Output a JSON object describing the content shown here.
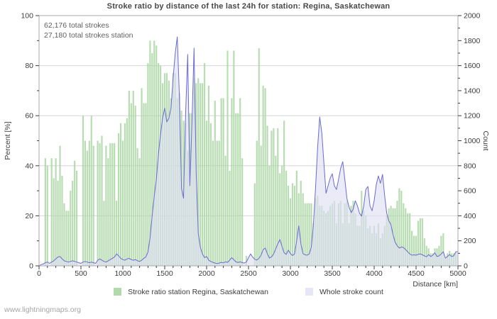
{
  "title": "Stroke ratio by distance of the last 24h for station: Regina, Saskatchewan",
  "annotations": {
    "line1": "62,176 total strokes",
    "line2": "27,180 total strokes station"
  },
  "axes": {
    "x": {
      "label": "Distance  [km]",
      "range": [
        0,
        5000
      ],
      "ticks": [
        0,
        500,
        1000,
        1500,
        2000,
        2500,
        3000,
        3500,
        4000,
        4500,
        5000
      ],
      "minor_step": 100
    },
    "left": {
      "label": "Percent  [%]",
      "range": [
        0,
        100
      ],
      "ticks": [
        0,
        20,
        40,
        60,
        80,
        100
      ],
      "minor_step": 10
    },
    "right": {
      "label": "Count",
      "range": [
        0,
        2000
      ],
      "ticks": [
        0,
        200,
        400,
        600,
        800,
        1000,
        1200,
        1400,
        1600,
        1800,
        2000
      ],
      "minor_step": 100
    }
  },
  "legend": [
    {
      "label": "Stroke ratio station Regina, Saskatchewan",
      "swatch": "#b1d9ab"
    },
    {
      "label": "Whole stroke count",
      "swatch": "#e6e6f7"
    }
  ],
  "footer": "www.lightningmaps.org",
  "colors": {
    "bar": "#a7d4a0",
    "line": "#6b6bd1",
    "area": "#dfdff4",
    "grid": "#d6d6d6",
    "border": "#a9a9a9",
    "tick": "#3c3c3c"
  },
  "chart_data": {
    "type": "bar",
    "subtype": "bars (left axis, percent) + area-line (right axis, count)",
    "title": "Stroke ratio by distance of the last 24h for station: Regina, Saskatchewan",
    "xlabel": "Distance  [km]",
    "ylabel_left": "Percent  [%]",
    "ylabel_right": "Count",
    "xlim": [
      0,
      5000
    ],
    "ylim_left": [
      0,
      100
    ],
    "ylim_right": [
      0,
      2000
    ],
    "grid": "horizontal-only",
    "legend_position": "bottom-center",
    "x_start_km": 0,
    "x_step_km": 25,
    "series": [
      {
        "name": "Stroke ratio station Regina, Saskatchewan",
        "type": "bar",
        "axis": "left",
        "unit": "%",
        "values": [
          0,
          0,
          0,
          43,
          40,
          0,
          43,
          35,
          43,
          34,
          48,
          36,
          25,
          22,
          22,
          30,
          34,
          42,
          38,
          0,
          0,
          60,
          50,
          46,
          50,
          60,
          48,
          0,
          50,
          49,
          52,
          26,
          48,
          43,
          49,
          49,
          49,
          26,
          53,
          57,
          50,
          57,
          59,
          70,
          65,
          70,
          64,
          47,
          43,
          71,
          65,
          65,
          81,
          90,
          85,
          90,
          88,
          81,
          80,
          73,
          77,
          77,
          74,
          67,
          77,
          77,
          67,
          69,
          62,
          58,
          57,
          46,
          61,
          61,
          75,
          73,
          75,
          73,
          73,
          81,
          58,
          72,
          57,
          50,
          66,
          50,
          50,
          67,
          67,
          44,
          86,
          38,
          67,
          86,
          61,
          61,
          67,
          43,
          0,
          4,
          0,
          0,
          0,
          33,
          50,
          87,
          48,
          72,
          71,
          56,
          40,
          54,
          55,
          44,
          55,
          37,
          40,
          58,
          38,
          32,
          27,
          33,
          32,
          38,
          29,
          34,
          29,
          25,
          25,
          25,
          25,
          17,
          27,
          28,
          24,
          24,
          22,
          21,
          22,
          24,
          25,
          26,
          17,
          25,
          26,
          17,
          25,
          26,
          17,
          24,
          26,
          21,
          16,
          16,
          30,
          22,
          20,
          15,
          16,
          13,
          16,
          13,
          17,
          11,
          13,
          16,
          20,
          23,
          24,
          23,
          23,
          26,
          31,
          30,
          25,
          23,
          21,
          21,
          14,
          12,
          12,
          18,
          19,
          19,
          11,
          8,
          7,
          5,
          5,
          7,
          7,
          8,
          12,
          13,
          3,
          5,
          6,
          5,
          5,
          5
        ]
      },
      {
        "name": "Whole stroke count",
        "type": "area-line",
        "axis": "right",
        "unit": "strokes",
        "values": [
          0,
          10,
          15,
          25,
          30,
          20,
          30,
          40,
          55,
          70,
          75,
          55,
          40,
          35,
          30,
          35,
          40,
          35,
          30,
          25,
          20,
          30,
          35,
          30,
          25,
          30,
          25,
          20,
          45,
          55,
          45,
          35,
          30,
          40,
          50,
          60,
          70,
          95,
          80,
          60,
          50,
          45,
          55,
          60,
          50,
          45,
          50,
          40,
          35,
          45,
          60,
          70,
          110,
          220,
          400,
          560,
          690,
          890,
          1050,
          1180,
          1260,
          1150,
          1180,
          1260,
          1500,
          1700,
          1830,
          1350,
          620,
          540,
          1230,
          1690,
          640,
          1150,
          1740,
          750,
          260,
          150,
          95,
          65,
          75,
          45,
          35,
          28,
          22,
          18,
          22,
          28,
          24,
          32,
          28,
          45,
          65,
          48,
          32,
          26,
          32,
          26,
          22,
          32,
          65,
          95,
          70,
          52,
          46,
          60,
          85,
          130,
          142,
          95,
          62,
          72,
          95,
          135,
          175,
          210,
          155,
          105,
          92,
          125,
          98,
          82,
          95,
          200,
          320,
          175,
          98,
          88,
          85,
          95,
          150,
          330,
          620,
          950,
          1190,
          1060,
          820,
          580,
          640,
          700,
          736,
          640,
          610,
          690,
          780,
          833,
          690,
          540,
          470,
          425,
          455,
          520,
          480,
          420,
          397,
          480,
          610,
          634,
          480,
          440,
          520,
          650,
          719,
          660,
          731,
          560,
          420,
          360,
          330,
          250,
          190,
          160,
          142,
          150,
          147,
          130,
          113,
          95,
          85,
          88,
          85,
          92,
          95,
          88,
          80,
          72,
          90,
          74,
          85,
          104,
          74,
          80,
          95,
          113,
          62,
          75,
          90,
          74,
          80,
          113
        ]
      }
    ],
    "annotations": [
      "62,176 total strokes",
      "27,180 total strokes station"
    ]
  }
}
